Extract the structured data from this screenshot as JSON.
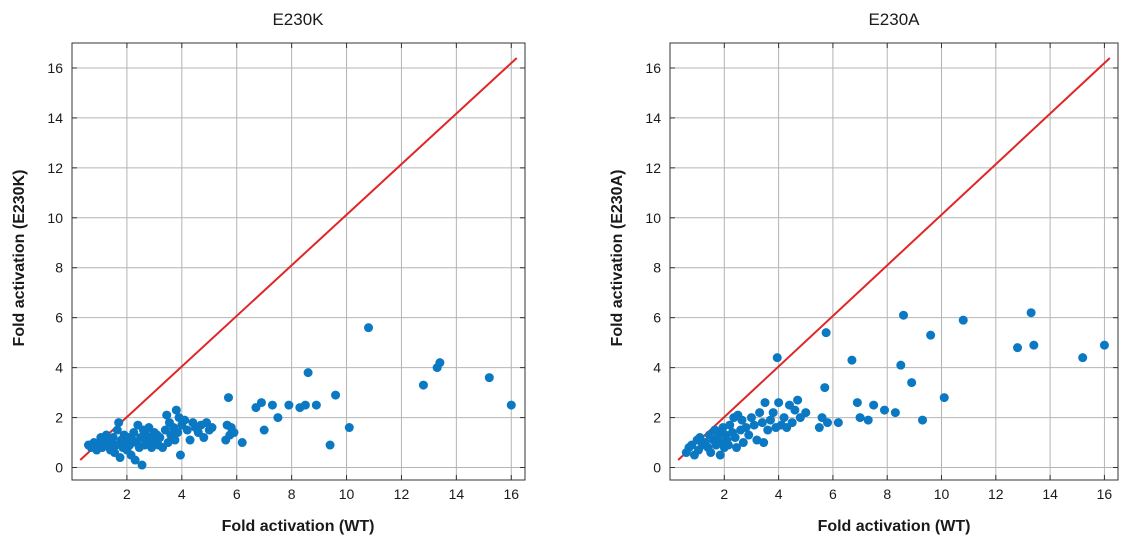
{
  "colors": {
    "points": "#0a78c2",
    "reference_line": "#e02626",
    "grid": "#b4b4b4",
    "axes": "#333333"
  },
  "chart_data": [
    {
      "type": "scatter",
      "title": "E230K",
      "xlabel": "Fold activation (WT)",
      "ylabel": "Fold activation (E230K)",
      "xlim": [
        0,
        16.5
      ],
      "ylim": [
        -0.5,
        17
      ],
      "xticks": [
        2,
        4,
        6,
        8,
        10,
        12,
        14,
        16
      ],
      "yticks": [
        0,
        2,
        4,
        6,
        8,
        10,
        12,
        14,
        16
      ],
      "grid": true,
      "reference_line": {
        "x": [
          0.3,
          16.2
        ],
        "y": [
          0.3,
          16.4
        ]
      },
      "points": [
        [
          0.6,
          0.9
        ],
        [
          0.7,
          0.8
        ],
        [
          0.8,
          1.0
        ],
        [
          0.9,
          0.7
        ],
        [
          1.0,
          0.9
        ],
        [
          1.05,
          1.2
        ],
        [
          1.1,
          0.8
        ],
        [
          1.2,
          1.0
        ],
        [
          1.25,
          1.3
        ],
        [
          1.3,
          0.9
        ],
        [
          1.35,
          1.1
        ],
        [
          1.4,
          0.7
        ],
        [
          1.45,
          1.0
        ],
        [
          1.5,
          1.2
        ],
        [
          1.55,
          0.6
        ],
        [
          1.6,
          0.9
        ],
        [
          1.65,
          1.5
        ],
        [
          1.7,
          1.8
        ],
        [
          1.75,
          0.4
        ],
        [
          1.8,
          1.1
        ],
        [
          1.85,
          0.8
        ],
        [
          1.9,
          1.3
        ],
        [
          1.95,
          1.0
        ],
        [
          2.0,
          0.7
        ],
        [
          2.05,
          1.2
        ],
        [
          2.1,
          0.9
        ],
        [
          2.15,
          0.5
        ],
        [
          2.2,
          1.1
        ],
        [
          2.25,
          1.4
        ],
        [
          2.3,
          0.3
        ],
        [
          2.35,
          1.0
        ],
        [
          2.4,
          1.7
        ],
        [
          2.45,
          0.8
        ],
        [
          2.5,
          1.2
        ],
        [
          2.55,
          0.1
        ],
        [
          2.6,
          1.5
        ],
        [
          2.65,
          0.9
        ],
        [
          2.7,
          1.3
        ],
        [
          2.75,
          1.0
        ],
        [
          2.8,
          1.6
        ],
        [
          2.85,
          1.1
        ],
        [
          2.9,
          0.8
        ],
        [
          2.95,
          1.2
        ],
        [
          3.0,
          1.4
        ],
        [
          3.05,
          1.0
        ],
        [
          3.1,
          1.3
        ],
        [
          3.15,
          0.9
        ],
        [
          3.2,
          1.2
        ],
        [
          3.3,
          0.8
        ],
        [
          3.4,
          1.5
        ],
        [
          3.45,
          2.1
        ],
        [
          3.5,
          1.0
        ],
        [
          3.55,
          1.8
        ],
        [
          3.6,
          1.3
        ],
        [
          3.7,
          1.6
        ],
        [
          3.75,
          1.1
        ],
        [
          3.8,
          2.3
        ],
        [
          3.85,
          1.4
        ],
        [
          3.9,
          2.0
        ],
        [
          3.95,
          0.5
        ],
        [
          4.0,
          1.7
        ],
        [
          4.1,
          1.9
        ],
        [
          4.2,
          1.5
        ],
        [
          4.3,
          1.1
        ],
        [
          4.4,
          1.8
        ],
        [
          4.5,
          1.6
        ],
        [
          4.6,
          1.4
        ],
        [
          4.7,
          1.7
        ],
        [
          4.8,
          1.2
        ],
        [
          4.9,
          1.8
        ],
        [
          5.0,
          1.5
        ],
        [
          5.1,
          1.6
        ],
        [
          5.6,
          1.1
        ],
        [
          5.65,
          1.7
        ],
        [
          5.7,
          2.8
        ],
        [
          5.75,
          1.3
        ],
        [
          5.8,
          1.6
        ],
        [
          5.9,
          1.4
        ],
        [
          6.2,
          1.0
        ],
        [
          6.7,
          2.4
        ],
        [
          6.9,
          2.6
        ],
        [
          7.0,
          1.5
        ],
        [
          7.3,
          2.5
        ],
        [
          7.5,
          2.0
        ],
        [
          7.9,
          2.5
        ],
        [
          8.3,
          2.4
        ],
        [
          8.5,
          2.5
        ],
        [
          8.6,
          3.8
        ],
        [
          8.9,
          2.5
        ],
        [
          9.4,
          0.9
        ],
        [
          9.6,
          2.9
        ],
        [
          10.1,
          1.6
        ],
        [
          10.8,
          5.6
        ],
        [
          12.8,
          3.3
        ],
        [
          13.3,
          4.0
        ],
        [
          13.4,
          4.2
        ],
        [
          15.2,
          3.6
        ],
        [
          16.0,
          2.5
        ]
      ]
    },
    {
      "type": "scatter",
      "title": "E230A",
      "xlabel": "Fold activation (WT)",
      "ylabel": "Fold activation (E230A)",
      "xlim": [
        0,
        16.5
      ],
      "ylim": [
        -0.5,
        17
      ],
      "xticks": [
        2,
        4,
        6,
        8,
        10,
        12,
        14,
        16
      ],
      "yticks": [
        0,
        2,
        4,
        6,
        8,
        10,
        12,
        14,
        16
      ],
      "grid": true,
      "reference_line": {
        "x": [
          0.3,
          16.2
        ],
        "y": [
          0.3,
          16.4
        ]
      },
      "points": [
        [
          0.6,
          0.6
        ],
        [
          0.7,
          0.8
        ],
        [
          0.8,
          0.9
        ],
        [
          0.9,
          0.5
        ],
        [
          1.0,
          1.1
        ],
        [
          1.05,
          0.7
        ],
        [
          1.1,
          1.2
        ],
        [
          1.2,
          0.9
        ],
        [
          1.3,
          1.0
        ],
        [
          1.4,
          0.8
        ],
        [
          1.45,
          1.3
        ],
        [
          1.5,
          0.6
        ],
        [
          1.6,
          1.1
        ],
        [
          1.65,
          1.5
        ],
        [
          1.7,
          0.9
        ],
        [
          1.75,
          1.2
        ],
        [
          1.8,
          1.4
        ],
        [
          1.85,
          0.5
        ],
        [
          1.9,
          1.0
        ],
        [
          1.95,
          1.6
        ],
        [
          2.0,
          0.8
        ],
        [
          2.05,
          1.3
        ],
        [
          2.1,
          1.1
        ],
        [
          2.15,
          0.9
        ],
        [
          2.2,
          1.7
        ],
        [
          2.3,
          1.4
        ],
        [
          2.35,
          2.0
        ],
        [
          2.4,
          1.2
        ],
        [
          2.45,
          0.8
        ],
        [
          2.5,
          2.1
        ],
        [
          2.6,
          1.5
        ],
        [
          2.65,
          1.9
        ],
        [
          2.7,
          1.0
        ],
        [
          2.8,
          1.6
        ],
        [
          2.9,
          1.3
        ],
        [
          3.0,
          2.0
        ],
        [
          3.1,
          1.7
        ],
        [
          3.2,
          1.1
        ],
        [
          3.3,
          2.2
        ],
        [
          3.4,
          1.8
        ],
        [
          3.45,
          1.0
        ],
        [
          3.5,
          2.6
        ],
        [
          3.6,
          1.5
        ],
        [
          3.7,
          1.9
        ],
        [
          3.8,
          2.2
        ],
        [
          3.9,
          1.6
        ],
        [
          3.95,
          4.4
        ],
        [
          4.0,
          2.6
        ],
        [
          4.1,
          1.7
        ],
        [
          4.2,
          2.0
        ],
        [
          4.3,
          1.6
        ],
        [
          4.4,
          2.5
        ],
        [
          4.5,
          1.8
        ],
        [
          4.6,
          2.3
        ],
        [
          4.7,
          2.7
        ],
        [
          4.8,
          2.0
        ],
        [
          5.0,
          2.2
        ],
        [
          5.5,
          1.6
        ],
        [
          5.6,
          2.0
        ],
        [
          5.7,
          3.2
        ],
        [
          5.75,
          5.4
        ],
        [
          5.8,
          1.8
        ],
        [
          6.2,
          1.8
        ],
        [
          6.7,
          4.3
        ],
        [
          6.9,
          2.6
        ],
        [
          7.0,
          2.0
        ],
        [
          7.3,
          1.9
        ],
        [
          7.5,
          2.5
        ],
        [
          7.9,
          2.3
        ],
        [
          8.3,
          2.2
        ],
        [
          8.5,
          4.1
        ],
        [
          8.6,
          6.1
        ],
        [
          8.9,
          3.4
        ],
        [
          9.3,
          1.9
        ],
        [
          9.6,
          5.3
        ],
        [
          10.1,
          2.8
        ],
        [
          10.8,
          5.9
        ],
        [
          12.8,
          4.8
        ],
        [
          13.3,
          6.2
        ],
        [
          13.4,
          4.9
        ],
        [
          15.2,
          4.4
        ],
        [
          16.0,
          4.9
        ]
      ]
    }
  ]
}
